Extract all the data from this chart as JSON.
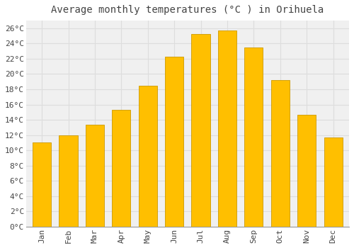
{
  "title": "Average monthly temperatures (°C ) in Orihuela",
  "months": [
    "Jan",
    "Feb",
    "Mar",
    "Apr",
    "May",
    "Jun",
    "Jul",
    "Aug",
    "Sep",
    "Oct",
    "Nov",
    "Dec"
  ],
  "temperatures": [
    11.0,
    12.0,
    13.4,
    15.3,
    18.5,
    22.3,
    25.2,
    25.7,
    23.5,
    19.2,
    14.7,
    11.7
  ],
  "bar_color": "#FFBF00",
  "bar_edge_color": "#CC9900",
  "background_color": "#FFFFFF",
  "plot_bg_color": "#F0F0F0",
  "grid_color": "#DDDDDD",
  "text_color": "#444444",
  "ylim": [
    0,
    27
  ],
  "yticks": [
    0,
    2,
    4,
    6,
    8,
    10,
    12,
    14,
    16,
    18,
    20,
    22,
    24,
    26
  ],
  "title_fontsize": 10,
  "tick_fontsize": 8,
  "font_family": "monospace"
}
